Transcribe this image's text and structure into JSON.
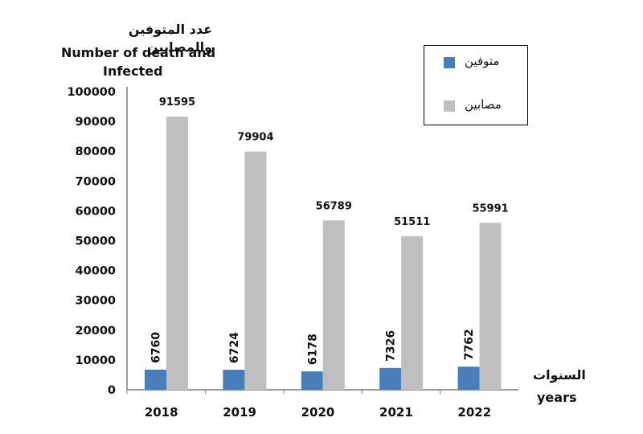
{
  "chart_data": {
    "type": "bar",
    "ylabel_ar": "عدد المتوفين والمصابين",
    "ylabel_en_line1": "Number of death and",
    "ylabel_en_line2": "Infected",
    "xlabel_ar": "السنوات",
    "xlabel_en": "years",
    "categories": [
      "2018",
      "2019",
      "2020",
      "2021",
      "2022"
    ],
    "ylim": [
      0,
      100000
    ],
    "yticks": [
      "0",
      "10000",
      "20000",
      "30000",
      "40000",
      "50000",
      "60000",
      "70000",
      "80000",
      "90000",
      "100000"
    ],
    "grid": false,
    "legend_position": "top-right",
    "series": [
      {
        "name": "متوفين",
        "color": "#4a7ebb",
        "values": [
          6760,
          6724,
          6178,
          7326,
          7762
        ],
        "labels": [
          "6760",
          "6724",
          "6178",
          "7326",
          "7762"
        ]
      },
      {
        "name": "مصابين",
        "color": "#bfbfbf",
        "values": [
          91595,
          79904,
          56789,
          51511,
          55991
        ],
        "labels": [
          "91595",
          "79904",
          "56789",
          "51511",
          "55991"
        ]
      }
    ]
  }
}
